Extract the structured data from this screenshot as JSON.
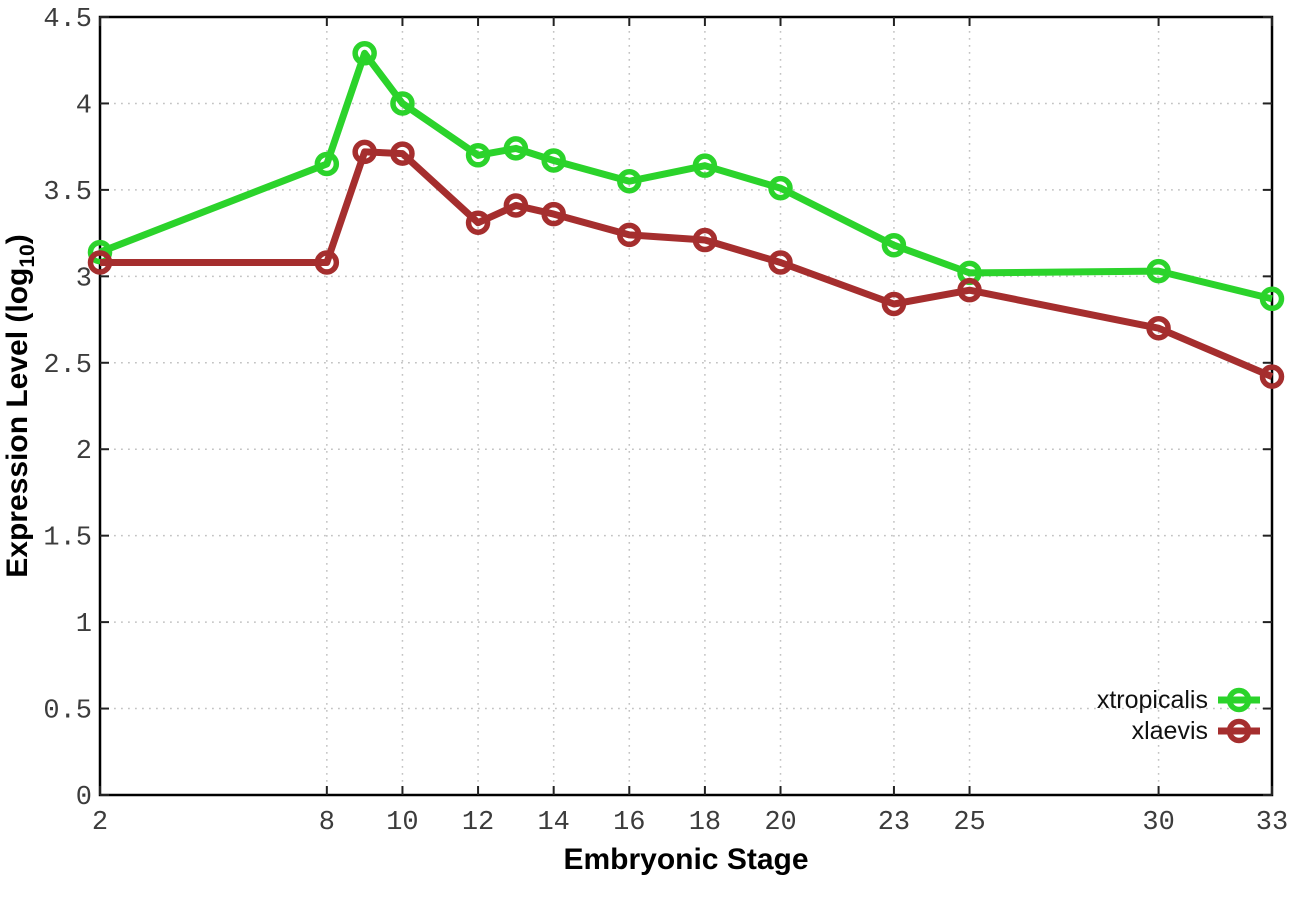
{
  "chart_data": {
    "type": "line",
    "title": "",
    "xlabel": "Embryonic Stage",
    "ylabel": {
      "text": "Expression Level (log",
      "sub": "10",
      "suffix": ")"
    },
    "xlim": [
      2,
      33
    ],
    "ylim": [
      0,
      4.5
    ],
    "grid": true,
    "legend_position": "bottom-right",
    "xticks": [
      2,
      8,
      10,
      12,
      14,
      16,
      18,
      20,
      23,
      25,
      30,
      33
    ],
    "xtick_labels": [
      "2",
      "8",
      "10",
      "12",
      "14",
      "16",
      "18",
      "20",
      "23",
      "25",
      "30",
      "33"
    ],
    "yticks": [
      0,
      0.5,
      1,
      1.5,
      2,
      2.5,
      3,
      3.5,
      4,
      4.5
    ],
    "ytick_labels": [
      "0",
      "0.5",
      "1",
      "1.5",
      "2",
      "2.5",
      "3",
      "3.5",
      "4",
      "4.5"
    ],
    "x": [
      2,
      8,
      9,
      10,
      12,
      13,
      14,
      16,
      18,
      20,
      23,
      25,
      30,
      33
    ],
    "series": [
      {
        "name": "xtropicalis",
        "color": "#2bd32b",
        "values": [
          3.14,
          3.65,
          4.29,
          4.0,
          3.7,
          3.74,
          3.67,
          3.55,
          3.64,
          3.51,
          3.18,
          3.02,
          3.03,
          2.87
        ]
      },
      {
        "name": "xlaevis",
        "color": "#a52e2e",
        "values": [
          3.08,
          3.08,
          3.72,
          3.71,
          3.31,
          3.41,
          3.36,
          3.24,
          3.21,
          3.08,
          2.84,
          2.92,
          2.7,
          2.42
        ]
      }
    ],
    "style": {
      "background": "#ffffff",
      "grid_color": "#c3c3c3",
      "border_color": "#000000",
      "line_width": 7,
      "marker_radius": 9.5,
      "marker_stroke": 5.5
    }
  }
}
